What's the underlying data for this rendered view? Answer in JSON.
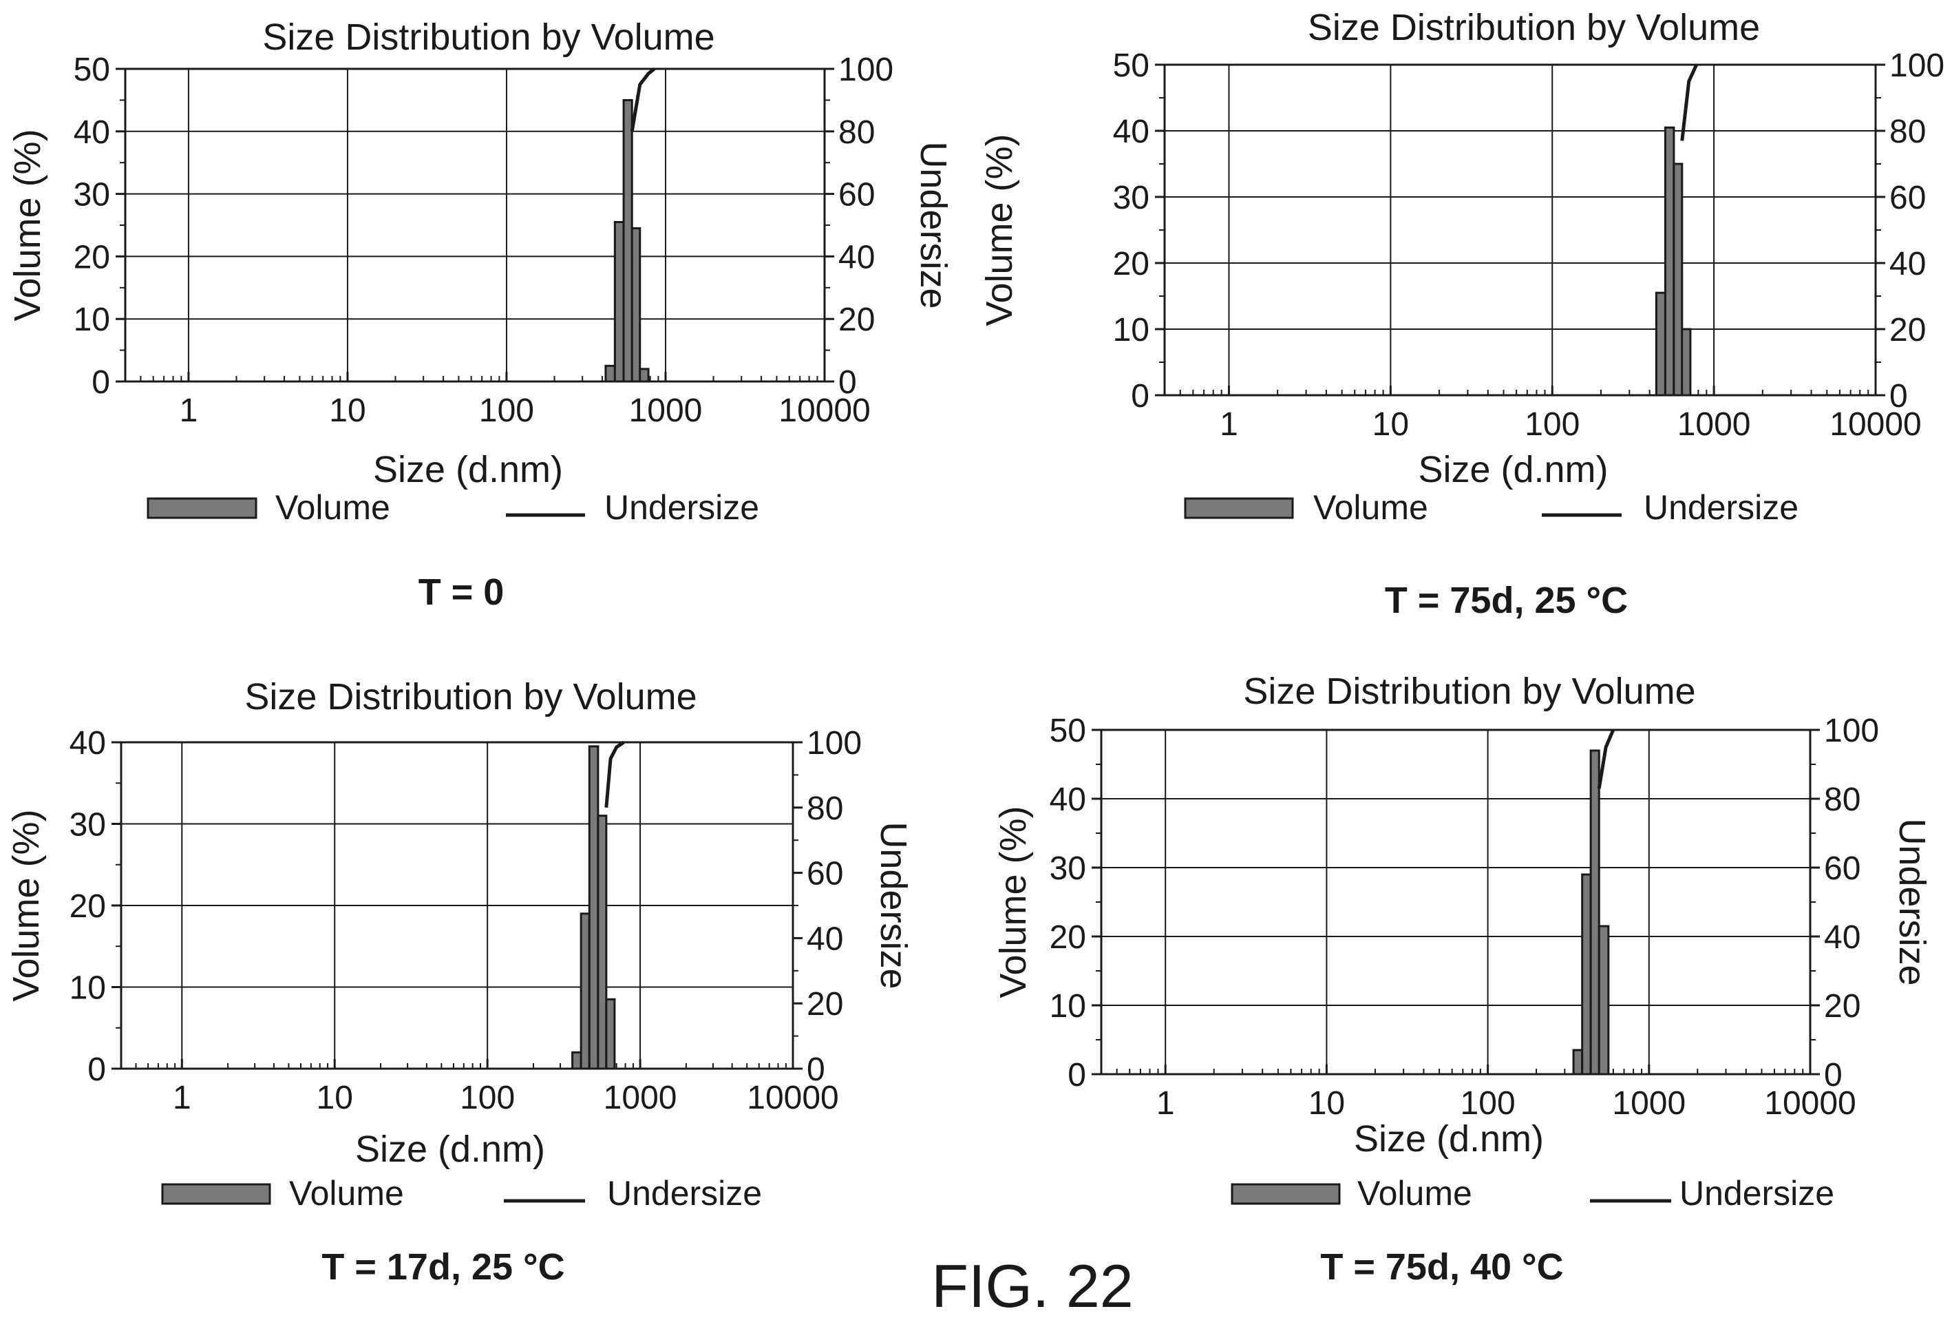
{
  "figure_label": "FIG. 22",
  "chart_data": [
    {
      "type": "bar",
      "id": "c1",
      "title": "Size Distribution by Volume",
      "caption": "T = 0",
      "xlabel": "Size (d.nm)",
      "ylabel": "Volume (%)",
      "y2label": "Undersize",
      "x_scale": "log",
      "xlim": [
        0.4,
        10000
      ],
      "ylim": [
        0,
        50
      ],
      "y2lim": [
        0,
        100
      ],
      "x_ticks": [
        1,
        10,
        100,
        1000,
        10000
      ],
      "x_tick_labels": [
        "1",
        "10",
        "100",
        "1000",
        "10000"
      ],
      "y_ticks": [
        0,
        10,
        20,
        30,
        40,
        50
      ],
      "y2_ticks": [
        0,
        20,
        40,
        60,
        80,
        100
      ],
      "grid": true,
      "legend_position": "bottom",
      "legend": {
        "bar": "Volume",
        "line": "Undersize"
      },
      "bars": [
        {
          "x0": 420,
          "x1": 480,
          "value": 2.5
        },
        {
          "x0": 480,
          "x1": 545,
          "value": 25.5
        },
        {
          "x0": 545,
          "x1": 615,
          "value": 45
        },
        {
          "x0": 615,
          "x1": 690,
          "value": 24.5
        },
        {
          "x0": 690,
          "x1": 780,
          "value": 2
        }
      ],
      "series": [
        {
          "name": "Undersize",
          "x": [
            615,
            690,
            780,
            850
          ],
          "y": [
            80,
            95,
            98.5,
            100
          ]
        }
      ]
    },
    {
      "type": "bar",
      "id": "c2",
      "title": "Size Distribution by Volume",
      "caption": "T = 75d, 25 °C",
      "xlabel": "Size (d.nm)",
      "ylabel": "Volume (%)",
      "y2label": "",
      "x_scale": "log",
      "xlim": [
        0.4,
        10000
      ],
      "ylim": [
        0,
        50
      ],
      "y2lim": [
        0,
        100
      ],
      "x_ticks": [
        1,
        10,
        100,
        1000,
        10000
      ],
      "x_tick_labels": [
        "1",
        "10",
        "100",
        "1000",
        "10000"
      ],
      "y_ticks": [
        0,
        10,
        20,
        30,
        40,
        50
      ],
      "y2_ticks": [
        0,
        20,
        40,
        60,
        80,
        100
      ],
      "grid": true,
      "legend_position": "bottom",
      "legend": {
        "bar": "Volume",
        "line": "Undersize"
      },
      "bars": [
        {
          "x0": 440,
          "x1": 500,
          "value": 15.5
        },
        {
          "x0": 500,
          "x1": 565,
          "value": 40.5
        },
        {
          "x0": 565,
          "x1": 635,
          "value": 35
        },
        {
          "x0": 635,
          "x1": 715,
          "value": 10
        }
      ],
      "series": [
        {
          "name": "Undersize",
          "x": [
            635,
            700,
            780
          ],
          "y": [
            77,
            95,
            100
          ]
        }
      ]
    },
    {
      "type": "bar",
      "id": "c3",
      "title": "Size Distribution by Volume",
      "caption": "T = 17d, 25 °C",
      "xlabel": "Size (d.nm)",
      "ylabel": "Volume (%)",
      "y2label": "Undersize",
      "x_scale": "log",
      "xlim": [
        0.4,
        10000
      ],
      "ylim": [
        0,
        40
      ],
      "y2lim": [
        0,
        100
      ],
      "x_ticks": [
        1,
        10,
        100,
        1000,
        10000
      ],
      "x_tick_labels": [
        "1",
        "10",
        "100",
        "1000",
        "10000"
      ],
      "y_ticks": [
        0,
        10,
        20,
        30,
        40
      ],
      "y2_ticks": [
        0,
        20,
        40,
        60,
        80,
        100
      ],
      "grid": true,
      "legend_position": "bottom",
      "legend": {
        "bar": "Volume",
        "line": "Undersize"
      },
      "bars": [
        {
          "x0": 360,
          "x1": 410,
          "value": 2
        },
        {
          "x0": 410,
          "x1": 465,
          "value": 19
        },
        {
          "x0": 465,
          "x1": 530,
          "value": 39.5
        },
        {
          "x0": 530,
          "x1": 600,
          "value": 31
        },
        {
          "x0": 600,
          "x1": 680,
          "value": 8.5
        }
      ],
      "series": [
        {
          "name": "Undersize",
          "x": [
            600,
            640,
            700,
            780
          ],
          "y": [
            80,
            95,
            98.5,
            100
          ]
        }
      ]
    },
    {
      "type": "bar",
      "id": "c4",
      "title": "Size Distribution by Volume",
      "caption": "T = 75d, 40 °C",
      "xlabel": "Size (d.nm)",
      "ylabel": "Volume (%)",
      "y2label": "Undersize",
      "x_scale": "log",
      "xlim": [
        0.4,
        10000
      ],
      "ylim": [
        0,
        50
      ],
      "y2lim": [
        0,
        100
      ],
      "x_ticks": [
        1,
        10,
        100,
        1000,
        10000
      ],
      "x_tick_labels": [
        "1",
        "10",
        "100",
        "1000",
        "10000"
      ],
      "y_ticks": [
        0,
        10,
        20,
        30,
        40,
        50
      ],
      "y2_ticks": [
        0,
        20,
        40,
        60,
        80,
        100
      ],
      "grid": true,
      "legend_position": "bottom",
      "legend": {
        "bar": "Volume",
        "line": "Undersize"
      },
      "bars": [
        {
          "x0": 340,
          "x1": 385,
          "value": 3.5
        },
        {
          "x0": 385,
          "x1": 435,
          "value": 29
        },
        {
          "x0": 435,
          "x1": 490,
          "value": 47
        },
        {
          "x0": 490,
          "x1": 560,
          "value": 21.5
        }
      ],
      "series": [
        {
          "name": "Undersize",
          "x": [
            490,
            540,
            600
          ],
          "y": [
            83,
            95,
            100
          ]
        }
      ]
    }
  ]
}
